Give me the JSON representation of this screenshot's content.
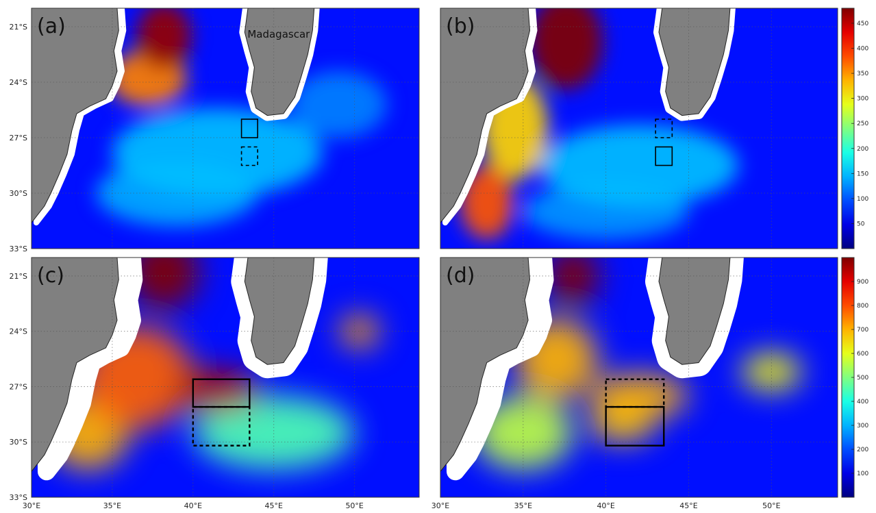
{
  "chart_data": {
    "type": "heatmap",
    "colormap": "jet",
    "x_axis": {
      "range_deg_E": [
        30,
        54
      ],
      "ticks": [
        {
          "value": 30,
          "label": "30°E"
        },
        {
          "value": 35,
          "label": "35°E"
        },
        {
          "value": 40,
          "label": "40°E"
        },
        {
          "value": 45,
          "label": "45°E"
        },
        {
          "value": 50,
          "label": "50°E"
        }
      ]
    },
    "y_axis": {
      "range_deg_S": [
        20,
        33
      ],
      "ticks": [
        {
          "value": 21,
          "label": "21°S"
        },
        {
          "value": 24,
          "label": "24°S"
        },
        {
          "value": 27,
          "label": "27°S"
        },
        {
          "value": 30,
          "label": "30°S"
        },
        {
          "value": 33,
          "label": "33°S"
        }
      ]
    },
    "grid": "dotted",
    "place_label": {
      "text": "Madagascar",
      "lon": 45.3,
      "lat": 21.6
    },
    "panels": [
      {
        "label": "(a)",
        "colorbar": {
          "min": 0,
          "max": 480,
          "ticks": [
            "50",
            "100",
            "150",
            "200",
            "250",
            "300",
            "350",
            "400",
            "450"
          ],
          "tick_values": [
            50,
            100,
            150,
            200,
            250,
            300,
            350,
            400,
            450
          ]
        },
        "boxes": [
          {
            "lon": [
              43.0,
              44.0
            ],
            "lat": [
              26.0,
              27.0
            ],
            "style": "solid"
          },
          {
            "lon": [
              43.0,
              44.0
            ],
            "lat": [
              27.5,
              28.5
            ],
            "style": "dashed"
          }
        ],
        "hotspots": [
          {
            "lon": 38.2,
            "lat": 21.5,
            "value": 470,
            "rx": 1.7,
            "ry": 1.8
          },
          {
            "lon": 37.2,
            "lat": 23.8,
            "value": 360,
            "rx": 2.4,
            "ry": 1.5
          },
          {
            "lon": 41.5,
            "lat": 27.8,
            "value": 150,
            "rx": 6.5,
            "ry": 2.4
          },
          {
            "lon": 39.0,
            "lat": 30.0,
            "value": 140,
            "rx": 5.0,
            "ry": 1.8
          },
          {
            "lon": 49.0,
            "lat": 25.2,
            "value": 120,
            "rx": 3.0,
            "ry": 1.8
          }
        ]
      },
      {
        "label": "(b)",
        "colorbar": {
          "min": 0,
          "max": 480,
          "ticks": [
            "50",
            "100",
            "150",
            "200",
            "250",
            "300",
            "350",
            "400",
            "450"
          ],
          "tick_values": [
            50,
            100,
            150,
            200,
            250,
            300,
            350,
            400,
            450
          ]
        },
        "boxes": [
          {
            "lon": [
              43.0,
              44.0
            ],
            "lat": [
              26.0,
              27.0
            ],
            "style": "dashed"
          },
          {
            "lon": [
              43.0,
              44.0
            ],
            "lat": [
              27.5,
              28.5
            ],
            "style": "solid"
          }
        ],
        "hotspots": [
          {
            "lon": 37.6,
            "lat": 21.8,
            "value": 500,
            "rx": 2.2,
            "ry": 2.6
          },
          {
            "lon": 34.5,
            "lat": 26.5,
            "value": 320,
            "rx": 2.0,
            "ry": 2.8
          },
          {
            "lon": 32.8,
            "lat": 30.5,
            "value": 380,
            "rx": 1.6,
            "ry": 2.0
          },
          {
            "lon": 42.0,
            "lat": 28.5,
            "value": 150,
            "rx": 6.0,
            "ry": 2.2
          },
          {
            "lon": 40.0,
            "lat": 31.0,
            "value": 130,
            "rx": 5.0,
            "ry": 1.5
          }
        ]
      },
      {
        "label": "(c)",
        "colorbar": null,
        "boxes": [
          {
            "lon": [
              40.0,
              43.5
            ],
            "lat": [
              26.6,
              28.1
            ],
            "style": "solid"
          },
          {
            "lon": [
              40.0,
              43.5
            ],
            "lat": [
              28.1,
              30.2
            ],
            "style": "dashed"
          }
        ],
        "hotspots": [
          {
            "lon": 38.2,
            "lat": 20.8,
            "value": 1000,
            "rx": 2.2,
            "ry": 2.0
          },
          {
            "lon": 36.5,
            "lat": 26.5,
            "value": 780,
            "rx": 3.5,
            "ry": 2.8
          },
          {
            "lon": 41.5,
            "lat": 27.2,
            "value": 960,
            "rx": 2.6,
            "ry": 1.2
          },
          {
            "lon": 33.5,
            "lat": 29.5,
            "value": 700,
            "rx": 2.5,
            "ry": 2.0
          },
          {
            "lon": 50.3,
            "lat": 24.0,
            "value": 720,
            "rx": 1.2,
            "ry": 0.9
          },
          {
            "lon": 45.0,
            "lat": 29.5,
            "value": 450,
            "rx": 5.0,
            "ry": 2.0
          }
        ]
      },
      {
        "label": "(d)",
        "colorbar": {
          "min": 0,
          "max": 1000,
          "ticks": [
            "100",
            "200",
            "300",
            "400",
            "500",
            "600",
            "700",
            "800",
            "900"
          ],
          "tick_values": [
            100,
            200,
            300,
            400,
            500,
            600,
            700,
            800,
            900
          ]
        },
        "boxes": [
          {
            "lon": [
              40.0,
              43.5
            ],
            "lat": [
              26.6,
              28.1
            ],
            "style": "dashed"
          },
          {
            "lon": [
              40.0,
              43.5
            ],
            "lat": [
              28.1,
              30.2
            ],
            "style": "solid"
          }
        ],
        "hotspots": [
          {
            "lon": 38.0,
            "lat": 21.0,
            "value": 1000,
            "rx": 1.6,
            "ry": 1.6
          },
          {
            "lon": 37.0,
            "lat": 25.5,
            "value": 700,
            "rx": 2.5,
            "ry": 2.2
          },
          {
            "lon": 42.0,
            "lat": 27.5,
            "value": 700,
            "rx": 3.0,
            "ry": 1.2
          },
          {
            "lon": 41.0,
            "lat": 29.0,
            "value": 680,
            "rx": 2.0,
            "ry": 1.0
          },
          {
            "lon": 35.0,
            "lat": 29.5,
            "value": 560,
            "rx": 3.0,
            "ry": 2.0
          },
          {
            "lon": 50.0,
            "lat": 26.2,
            "value": 620,
            "rx": 1.8,
            "ry": 1.0
          }
        ]
      }
    ]
  }
}
